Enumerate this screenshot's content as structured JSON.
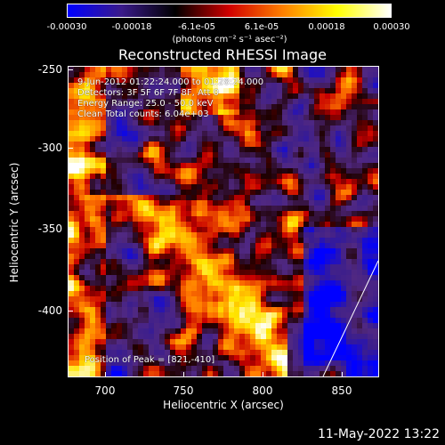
{
  "colorbar": {
    "ticks": [
      "-0.00030",
      "-0.00018",
      "-6.1e-05",
      "6.1e-05",
      "0.00018",
      "0.00030"
    ],
    "units": "(photons cm⁻² s⁻¹ asec⁻²)",
    "colors": [
      "#0000ff",
      "#3a1a8a",
      "#000000",
      "#d00000",
      "#ff8000",
      "#ffff00",
      "#ffffff"
    ]
  },
  "title": "Reconstructed RHESSI Image",
  "annotations": {
    "time_range": "9-Jun-2012 01:22:24.000 to 01:28:24.000",
    "detectors": "Detectors: 3F 5F 6F 7F 8F, Att 0",
    "energy": "Energy Range: 25.0 - 50.0 keV",
    "clean": "Clean    Total counts: 6.04e+03",
    "peak": "Position of Peak = [821,-410]"
  },
  "axes": {
    "ylabel": "Heliocentric Y (arcsec)",
    "xlabel": "Heliocentric X (arcsec)",
    "yticks": [
      "-250",
      "-300",
      "-350",
      "-400"
    ],
    "xticks": [
      "700",
      "750",
      "800",
      "850"
    ]
  },
  "datestamp": "11-May-2022 13:22"
}
